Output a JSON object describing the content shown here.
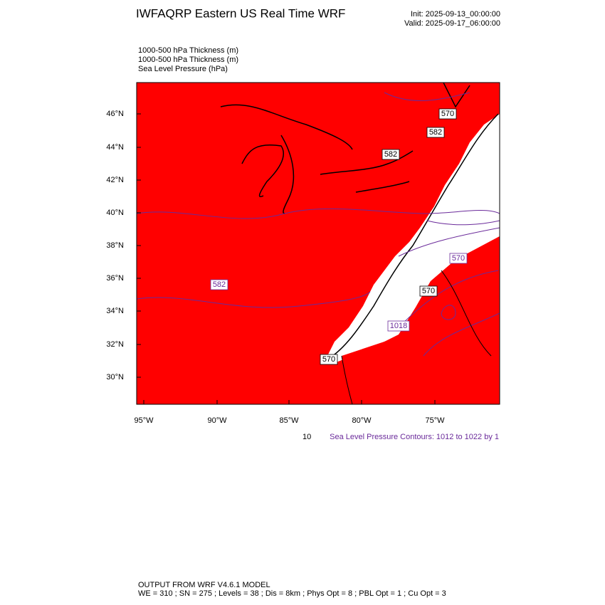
{
  "header": {
    "title": "IWFAQRP Eastern US Real Time WRF",
    "init": "Init: 2025-09-13_00:00:00",
    "valid": "Valid: 2025-09-17_06:00:00"
  },
  "fields": [
    "1000-500 hPa Thickness   (m)",
    "1000-500 hPa Thickness   (m)",
    "Sea Level Pressure   (hPa)"
  ],
  "map": {
    "lat_labels": [
      "46°N",
      "44°N",
      "42°N",
      "40°N",
      "38°N",
      "36°N",
      "34°N",
      "32°N",
      "30°N"
    ],
    "lon_labels": [
      "95°W",
      "90°W",
      "85°W",
      "80°W",
      "75°W"
    ],
    "contour_labels": [
      "570",
      "582",
      "582",
      "570",
      "570",
      "1018",
      "582",
      "570"
    ]
  },
  "contour_info": {
    "fragment": "10",
    "text": "Sea Level Pressure Contours: 1012 to 1022 by 1"
  },
  "footer": {
    "line1": "OUTPUT FROM WRF V4.6.1 MODEL",
    "line2": "WE = 310 ; SN = 275 ; Levels = 38 ; Dis = 8km ; Phys Opt = 8 ; PBL Opt = 1 ; Cu Opt = 3"
  }
}
